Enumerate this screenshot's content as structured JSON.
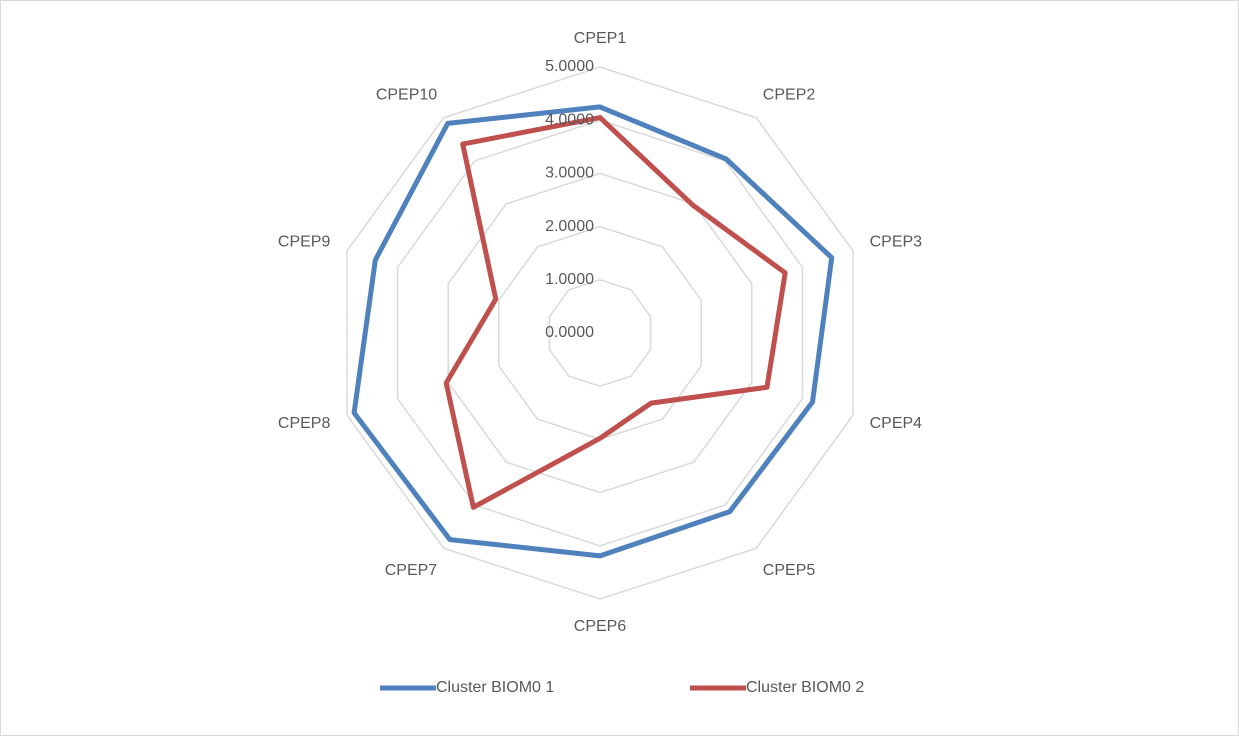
{
  "chart_data": {
    "type": "radar",
    "categories": [
      "CPEP1",
      "CPEP2",
      "CPEP3",
      "CPEP4",
      "CPEP5",
      "CPEP6",
      "CPEP7",
      "CPEP8",
      "CPEP9",
      "CPEP10"
    ],
    "series": [
      {
        "name": "Cluster BIOM0 1",
        "color": "#4f81bd",
        "values": [
          4.25,
          4.04,
          4.58,
          4.2,
          4.15,
          4.19,
          4.8,
          4.86,
          4.44,
          4.87
        ]
      },
      {
        "name": "Cluster BIOM0 2",
        "color": "#c0504d",
        "values": [
          4.05,
          2.97,
          3.66,
          3.3,
          1.63,
          1.98,
          4.05,
          3.04,
          2.06,
          4.39
        ]
      }
    ],
    "ylim": [
      0,
      5
    ],
    "yticks": [
      {
        "value": 0,
        "label": "0.0000"
      },
      {
        "value": 1,
        "label": "1.0000"
      },
      {
        "value": 2,
        "label": "2.0000"
      },
      {
        "value": 3,
        "label": "3.0000"
      },
      {
        "value": 4,
        "label": "4.0000"
      },
      {
        "value": 5,
        "label": "5.0000"
      }
    ],
    "grid": true,
    "legend": "bottom"
  }
}
